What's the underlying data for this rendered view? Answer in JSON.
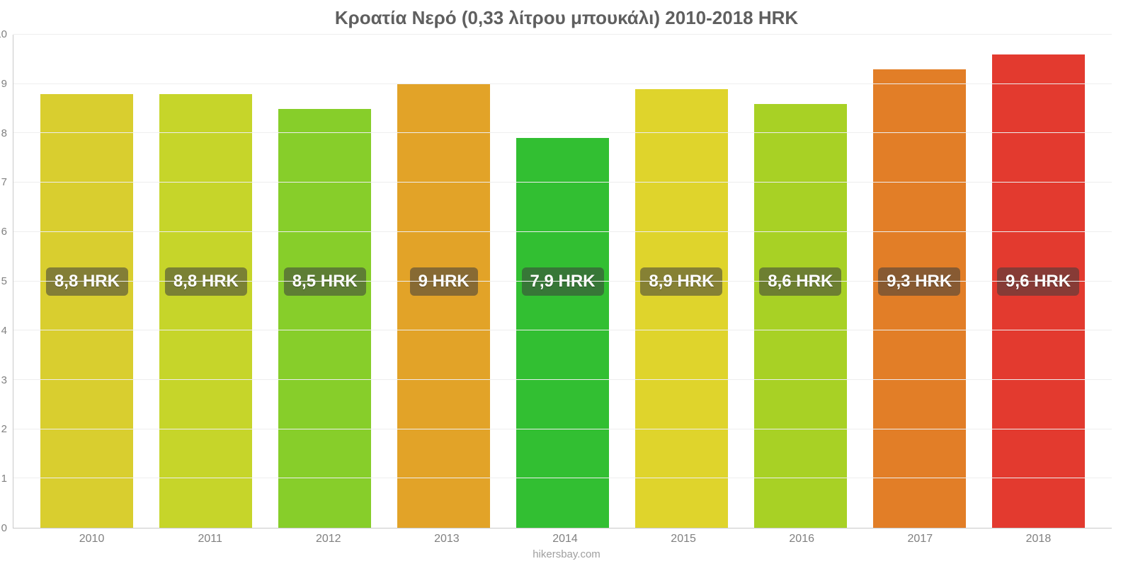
{
  "chart": {
    "type": "bar",
    "title": "Κροατία Νερό (0,33 λίτρου μπουκάλι) 2010-2018 HRK",
    "title_fontsize": 26,
    "title_color": "#5f5f5f",
    "attribution": "hikersbay.com",
    "background_color": "#ffffff",
    "grid_color": "#eeeeee",
    "axis_line_color": "#c9c9c9",
    "tick_font_color": "#808080",
    "ylim": [
      0,
      10
    ],
    "yticks": [
      0,
      1,
      2,
      3,
      4,
      5,
      6,
      7,
      8,
      9,
      10
    ],
    "label_band_center": 5,
    "bar_width_ratio": 0.78,
    "value_label_fontsize": 24,
    "value_label_bg": "rgba(60,60,60,0.55)",
    "value_label_color": "#ffffff",
    "categories": [
      "2010",
      "2011",
      "2012",
      "2013",
      "2014",
      "2015",
      "2016",
      "2017",
      "2018"
    ],
    "values": [
      8.8,
      8.8,
      8.5,
      9.0,
      7.9,
      8.9,
      8.6,
      9.3,
      9.6
    ],
    "value_labels": [
      "8,8 HRK",
      "8,8 HRK",
      "8,5 HRK",
      "9 HRK",
      "7,9 HRK",
      "8,9 HRK",
      "8,6 HRK",
      "9,3 HRK",
      "9,6 HRK"
    ],
    "bar_colors": [
      "#d9ce2f",
      "#c6d52a",
      "#87ce2a",
      "#e2a328",
      "#32bf32",
      "#dfd42c",
      "#a8d125",
      "#e27e27",
      "#e33a2f"
    ]
  }
}
